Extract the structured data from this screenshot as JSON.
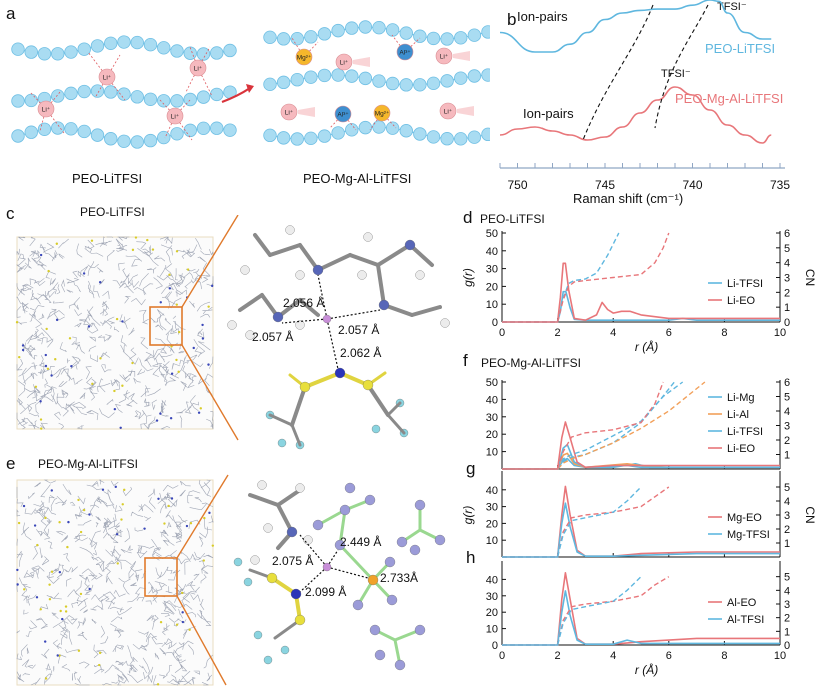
{
  "panels": {
    "a": {
      "letter": "a",
      "left_caption": "PEO-LiTFSI",
      "right_caption": "PEO-Mg-Al-LiTFSI",
      "ion_li": "Li⁺",
      "ion_mg": "Mg²⁺",
      "ion_al": "Al³⁺"
    },
    "b": {
      "letter": "b",
      "xlabel": "Raman shift (cm⁻¹)",
      "xticks": [
        "750",
        "745",
        "740",
        "735"
      ],
      "label_ionpairs_top": "Ion-pairs",
      "label_ionpairs_bottom": "Ion-pairs",
      "label_tfsi_top": "TFSI⁻",
      "label_tfsi_bottom": "TFSI⁻",
      "legend_top": "PEO-LiTFSI",
      "legend_bottom": "PEO-Mg-Al-LiTFSI"
    },
    "c": {
      "letter": "c",
      "title": "PEO-LiTFSI",
      "dist1": "2.056 Å",
      "dist2": "2.057 Å",
      "dist3": "2.057 Å",
      "dist4": "2.062 Å"
    },
    "e": {
      "letter": "e",
      "title": "PEO-Mg-Al-LiTFSI",
      "dist1": "2.449 Å",
      "dist2": "2.075 Å",
      "dist3": "2.733Å",
      "dist4": "2.099 Å"
    },
    "d": {
      "letter": "d",
      "title": "PEO-LiTFSI",
      "ylabel": "g(r)",
      "y2label": "CN",
      "yticks": [
        "0",
        "10",
        "20",
        "30",
        "40",
        "50"
      ],
      "y2ticks": [
        "0",
        "1",
        "2",
        "3",
        "4",
        "5",
        "6"
      ],
      "xticks": [
        "0",
        "2",
        "4",
        "6",
        "8",
        "10"
      ],
      "xlabel": "r (Å)",
      "legend": [
        "Li-TFSI",
        "Li-EO"
      ]
    },
    "f": {
      "letter": "f",
      "title": "PEO-Mg-Al-LiTFSI",
      "yticks": [
        "10",
        "20",
        "30",
        "40",
        "50"
      ],
      "y2ticks": [
        "1",
        "2",
        "3",
        "4",
        "5",
        "6"
      ],
      "legend": [
        "Li-Mg",
        "Li-Al",
        "Li-TFSI",
        "Li-EO"
      ]
    },
    "g": {
      "letter": "g",
      "ylabel": "g(r)",
      "y2label": "CN",
      "yticks": [
        "10",
        "20",
        "30",
        "40"
      ],
      "y2ticks": [
        "1",
        "2",
        "3",
        "4",
        "5"
      ],
      "legend": [
        "Mg-EO",
        "Mg-TFSI"
      ]
    },
    "h": {
      "letter": "h",
      "yticks": [
        "0",
        "10",
        "20",
        "30",
        "40"
      ],
      "y2ticks": [
        "0",
        "1",
        "2",
        "3",
        "4",
        "5"
      ],
      "xticks": [
        "0",
        "2",
        "4",
        "6",
        "8",
        "10"
      ],
      "xlabel": "r (Å)",
      "legend": [
        "Al-EO",
        "Al-TFSI"
      ]
    }
  },
  "colors": {
    "blue_line": "#5fb7df",
    "red_line": "#e8767a",
    "orange_line": "#f2a05a",
    "chain": "#a9dcf2",
    "li_ion": "#f6b9be",
    "mg_ion": "#f5b72b",
    "al_ion": "#3e8fd0",
    "arrow": "#d9333b",
    "zoom": "#e07a2c"
  },
  "chart_data": [
    {
      "panel": "b",
      "type": "line",
      "xlabel": "Raman shift (cm⁻¹)",
      "xlim": [
        750,
        735
      ],
      "series": [
        {
          "name": "PEO-LiTFSI",
          "x": [
            751,
            749,
            748,
            747,
            746,
            745,
            744,
            743,
            742,
            741,
            740,
            739,
            738.5,
            738,
            737,
            736,
            735.5
          ],
          "y": [
            0.75,
            0.6,
            0.6,
            0.66,
            0.75,
            0.85,
            0.9,
            0.92,
            0.93,
            0.93,
            0.96,
            1.0,
            0.99,
            0.9,
            0.75,
            0.7,
            0.7
          ]
        },
        {
          "name": "PEO-Mg-Al-LiTFSI",
          "x": [
            751,
            750,
            749,
            748,
            747,
            746,
            745,
            744,
            743,
            742,
            741,
            740,
            739,
            738,
            737,
            736,
            735.5
          ],
          "y": [
            0.1,
            0.16,
            0.18,
            0.14,
            0.1,
            0.05,
            0.08,
            0.18,
            0.32,
            0.45,
            0.58,
            0.5,
            0.35,
            0.2,
            0.1,
            0.02,
            0.1
          ]
        }
      ]
    },
    {
      "panel": "d",
      "type": "line",
      "title": "PEO-LiTFSI",
      "xlim": [
        0,
        10
      ],
      "ylim": [
        0,
        50
      ],
      "y2lim": [
        0,
        6
      ],
      "series": [
        {
          "name": "Li-TFSI",
          "kind": "g",
          "x": [
            0,
            2.0,
            2.1,
            2.2,
            2.3,
            2.45,
            2.6,
            3.0,
            4,
            5,
            6,
            6.5,
            7,
            8,
            10
          ],
          "y": [
            0,
            0,
            6,
            17,
            17,
            8,
            1.5,
            1,
            1,
            1,
            1,
            2,
            1,
            1,
            1
          ]
        },
        {
          "name": "Li-EO",
          "kind": "g",
          "x": [
            0,
            2.0,
            2.1,
            2.2,
            2.28,
            2.4,
            2.6,
            3.0,
            3.4,
            3.6,
            3.8,
            4.0,
            4.3,
            4.6,
            5,
            6,
            10
          ],
          "y": [
            0,
            0,
            14,
            33,
            33,
            18,
            2,
            1,
            4,
            11,
            7,
            5,
            6,
            6,
            4,
            2,
            2
          ]
        },
        {
          "name": "Li-TFSI",
          "kind": "CN",
          "x": [
            0,
            2.0,
            2.2,
            2.4,
            2.6,
            3.0,
            3.4,
            3.8,
            4.2
          ],
          "y": [
            0,
            0,
            1.6,
            2.6,
            2.8,
            2.9,
            3.3,
            4.5,
            6
          ]
        },
        {
          "name": "Li-EO",
          "kind": "CN",
          "x": [
            0,
            2.0,
            2.2,
            2.4,
            2.6,
            3.0,
            4.0,
            5.0,
            5.5,
            5.8,
            6.0
          ],
          "y": [
            0,
            0,
            1.5,
            2.4,
            2.7,
            2.8,
            3.0,
            3.2,
            4.0,
            5.0,
            6
          ]
        }
      ]
    },
    {
      "panel": "f",
      "type": "line",
      "title": "PEO-Mg-Al-LiTFSI",
      "xlim": [
        0,
        10
      ],
      "ylim": [
        0,
        50
      ],
      "y2lim": [
        0,
        6
      ],
      "series": [
        {
          "name": "Li-Mg",
          "kind": "g",
          "x": [
            0,
            2.0,
            2.2,
            2.35,
            2.6,
            3.0,
            4.0,
            4.8,
            5.3,
            6,
            10
          ],
          "y": [
            0,
            0,
            5,
            6,
            2,
            1,
            1,
            3,
            1,
            1,
            1
          ]
        },
        {
          "name": "Li-Al",
          "kind": "g",
          "x": [
            0,
            2.0,
            2.2,
            2.35,
            2.6,
            3.0,
            4.5,
            5,
            6,
            10
          ],
          "y": [
            0,
            0,
            8,
            9,
            3,
            1,
            3,
            2,
            1,
            1
          ]
        },
        {
          "name": "Li-TFSI",
          "kind": "g",
          "x": [
            0,
            2.0,
            2.2,
            2.35,
            2.6,
            3.0,
            4.5,
            5,
            6,
            10
          ],
          "y": [
            0,
            0,
            12,
            14,
            4,
            1,
            2,
            1,
            1,
            1
          ]
        },
        {
          "name": "Li-EO",
          "kind": "g",
          "x": [
            0,
            2.0,
            2.15,
            2.28,
            2.45,
            2.7,
            3.0,
            4.0,
            5,
            6,
            10
          ],
          "y": [
            0,
            0,
            18,
            27,
            18,
            4,
            1,
            2,
            2,
            2,
            2
          ]
        },
        {
          "name": "Li-Mg",
          "kind": "CN",
          "x": [
            0,
            2.0,
            2.2,
            2.5,
            3.0,
            4.0,
            5.0,
            5.7,
            6.2
          ],
          "y": [
            0,
            0,
            0.5,
            0.8,
            1.0,
            1.8,
            3.2,
            4.8,
            6
          ]
        },
        {
          "name": "Li-Al",
          "kind": "CN",
          "x": [
            0,
            2.0,
            2.2,
            2.5,
            3.0,
            4.0,
            5.0,
            6.0,
            7.3
          ],
          "y": [
            0,
            0,
            0.4,
            0.7,
            1.0,
            1.8,
            2.8,
            4.0,
            6
          ]
        },
        {
          "name": "Li-TFSI",
          "kind": "CN",
          "x": [
            0,
            2.0,
            2.2,
            2.5,
            3.0,
            4.0,
            5.0,
            5.8,
            6.5
          ],
          "y": [
            0,
            0,
            0.7,
            1.0,
            1.3,
            2.3,
            3.3,
            5.0,
            6
          ]
        },
        {
          "name": "Li-EO",
          "kind": "CN",
          "x": [
            0,
            2.0,
            2.2,
            2.5,
            3.0,
            4.0,
            5.0,
            5.5,
            5.8
          ],
          "y": [
            0,
            0,
            1.2,
            2.2,
            2.5,
            2.7,
            3.2,
            4.5,
            6
          ]
        }
      ]
    },
    {
      "panel": "g",
      "type": "line",
      "xlim": [
        0,
        10
      ],
      "ylim": [
        0,
        50
      ],
      "y2lim": [
        0,
        6
      ],
      "series": [
        {
          "name": "Mg-EO",
          "kind": "g",
          "x": [
            0,
            2.0,
            2.15,
            2.28,
            2.45,
            2.7,
            3.0,
            4.0,
            5,
            7,
            10
          ],
          "y": [
            0,
            0,
            25,
            42,
            25,
            4,
            0.5,
            0.5,
            2,
            3,
            3
          ]
        },
        {
          "name": "Mg-TFSI",
          "kind": "g",
          "x": [
            0,
            2.0,
            2.15,
            2.28,
            2.45,
            2.7,
            3.0,
            4.0,
            5,
            7,
            10
          ],
          "y": [
            0,
            0,
            20,
            32,
            18,
            3,
            0.5,
            0.5,
            1,
            2,
            2
          ]
        },
        {
          "name": "Mg-EO",
          "kind": "CN",
          "x": [
            0,
            2.0,
            2.2,
            2.5,
            3.0,
            4.0,
            5.0,
            5.5,
            6.0
          ],
          "y": [
            0,
            0,
            1.8,
            2.8,
            3.0,
            3.2,
            3.6,
            4.3,
            5
          ]
        },
        {
          "name": "Mg-TFSI",
          "kind": "CN",
          "x": [
            0,
            2.0,
            2.2,
            2.5,
            3.0,
            4.0,
            4.5,
            5.0
          ],
          "y": [
            0,
            0,
            1.6,
            2.6,
            2.8,
            3.2,
            4.0,
            5
          ]
        }
      ]
    },
    {
      "panel": "h",
      "type": "line",
      "xlim": [
        0,
        10
      ],
      "ylim": [
        0,
        50
      ],
      "y2lim": [
        0,
        6
      ],
      "series": [
        {
          "name": "Al-EO",
          "kind": "g",
          "x": [
            0,
            2.0,
            2.15,
            2.28,
            2.45,
            2.7,
            3.0,
            4.0,
            5,
            7,
            10
          ],
          "y": [
            0,
            0,
            28,
            44,
            28,
            4,
            0.5,
            0.5,
            2,
            4,
            4
          ]
        },
        {
          "name": "Al-TFSI",
          "kind": "g",
          "x": [
            0,
            2.0,
            2.15,
            2.28,
            2.45,
            2.7,
            3.0,
            4.0,
            4.5,
            5,
            7,
            10
          ],
          "y": [
            0,
            0,
            20,
            33,
            18,
            3,
            0.5,
            0.5,
            3,
            1,
            1,
            1
          ]
        },
        {
          "name": "Al-EO",
          "kind": "CN",
          "x": [
            0,
            2.0,
            2.2,
            2.5,
            3.0,
            4.0,
            5.0,
            5.5,
            6.0
          ],
          "y": [
            0,
            0,
            1.8,
            2.8,
            3.0,
            3.2,
            3.6,
            4.4,
            5
          ]
        },
        {
          "name": "Al-TFSI",
          "kind": "CN",
          "x": [
            0,
            2.0,
            2.2,
            2.5,
            3.0,
            4.0,
            4.5,
            5.0
          ],
          "y": [
            0,
            0,
            1.6,
            2.6,
            2.8,
            3.2,
            4.0,
            5
          ]
        }
      ]
    }
  ]
}
